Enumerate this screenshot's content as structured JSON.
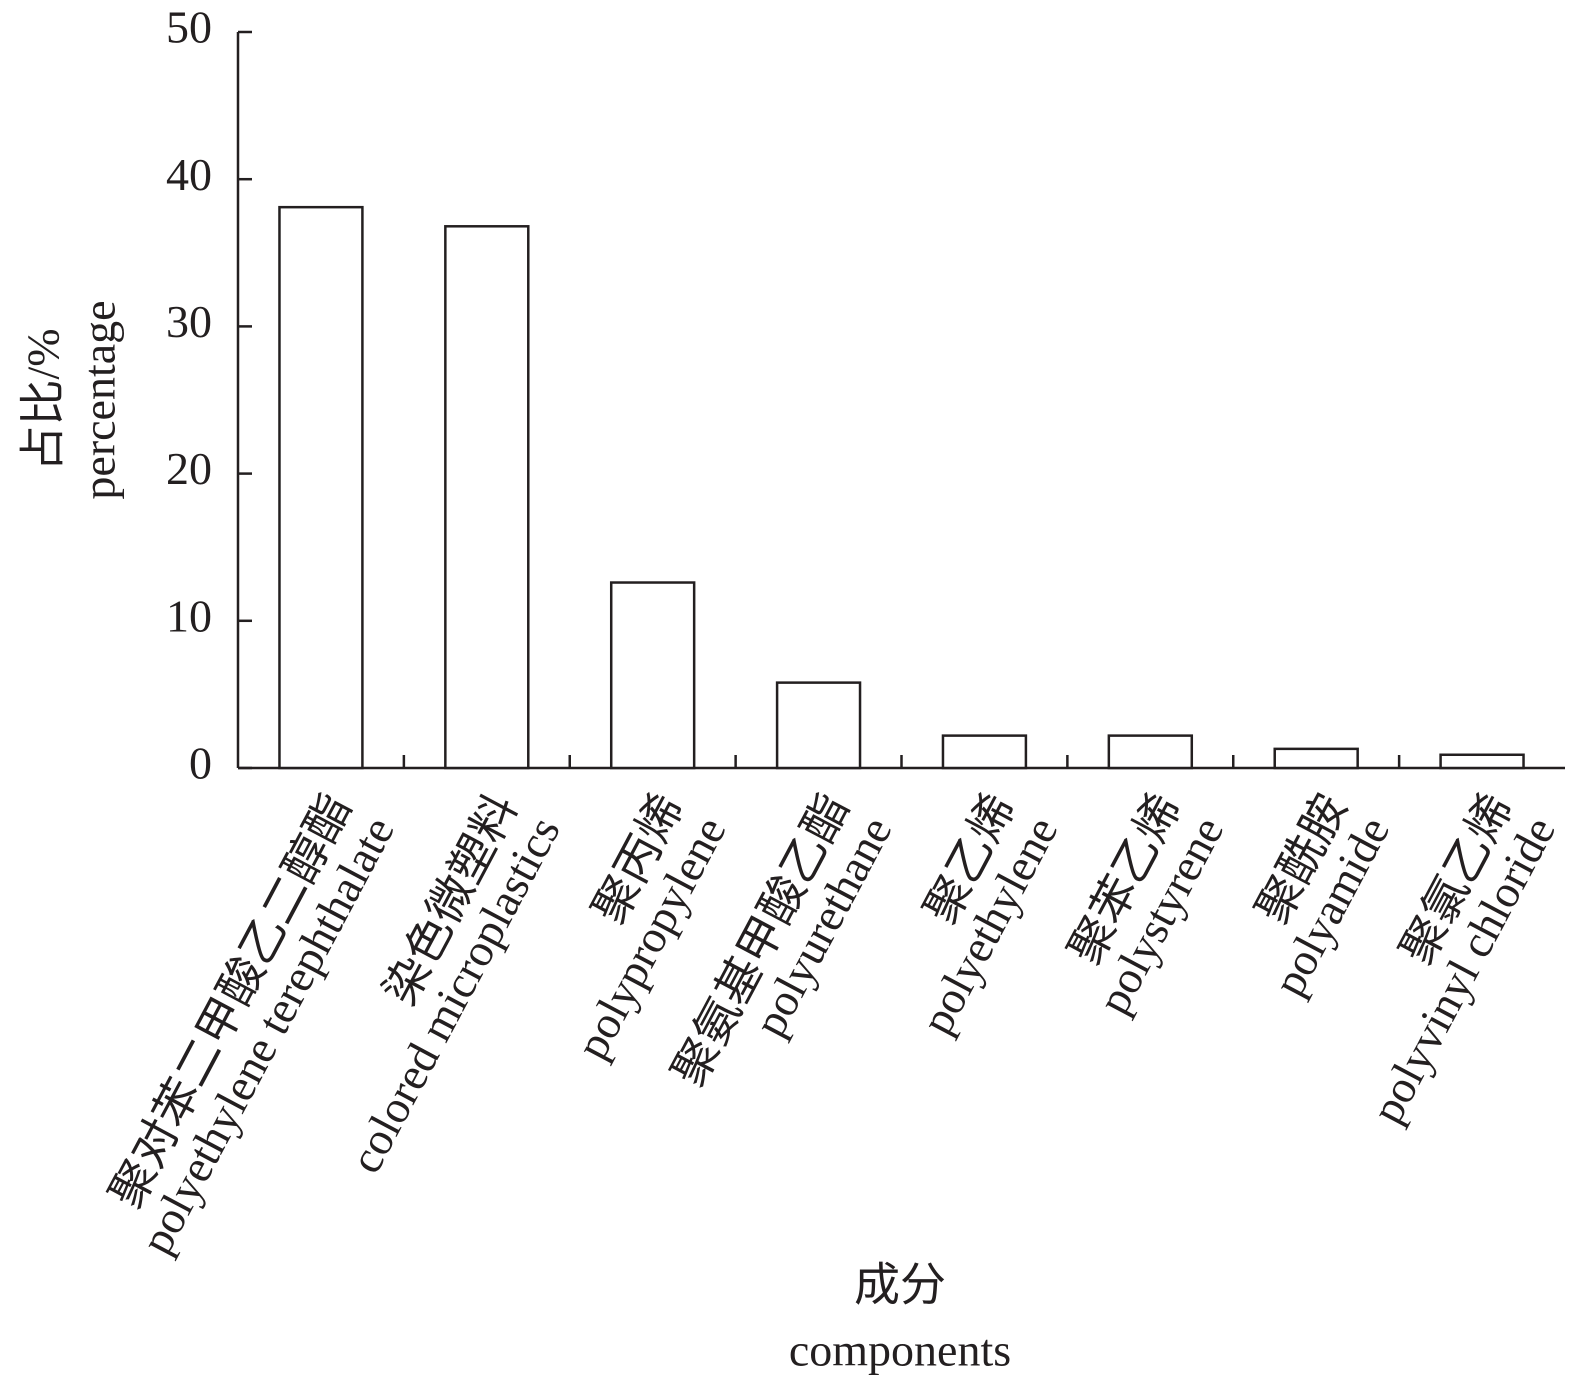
{
  "chart_data": {
    "type": "bar",
    "categories": [
      "聚对苯二甲酸乙二醇酯\npolyethylene terephthalate",
      "染色微塑料\ncolored microplastics",
      "聚丙烯\npolypropylene",
      "聚氨基甲酸乙酯\npolyurethane",
      "聚乙烯\npolyethylene",
      "聚苯乙烯\npolystyrene",
      "聚酰胺\npolyamide",
      "聚氯乙烯\npolyvinyl chloride"
    ],
    "values": [
      38.1,
      36.8,
      12.6,
      5.8,
      2.2,
      2.2,
      1.3,
      0.9
    ],
    "color": "#ffffff",
    "ylim": [
      0,
      50
    ],
    "yticks": [
      0,
      10,
      20,
      30,
      40,
      50
    ],
    "y_label": "占比/%",
    "y_label_en": "percentage",
    "x_label": "成分",
    "x_label_en": "components",
    "grid": false
  }
}
